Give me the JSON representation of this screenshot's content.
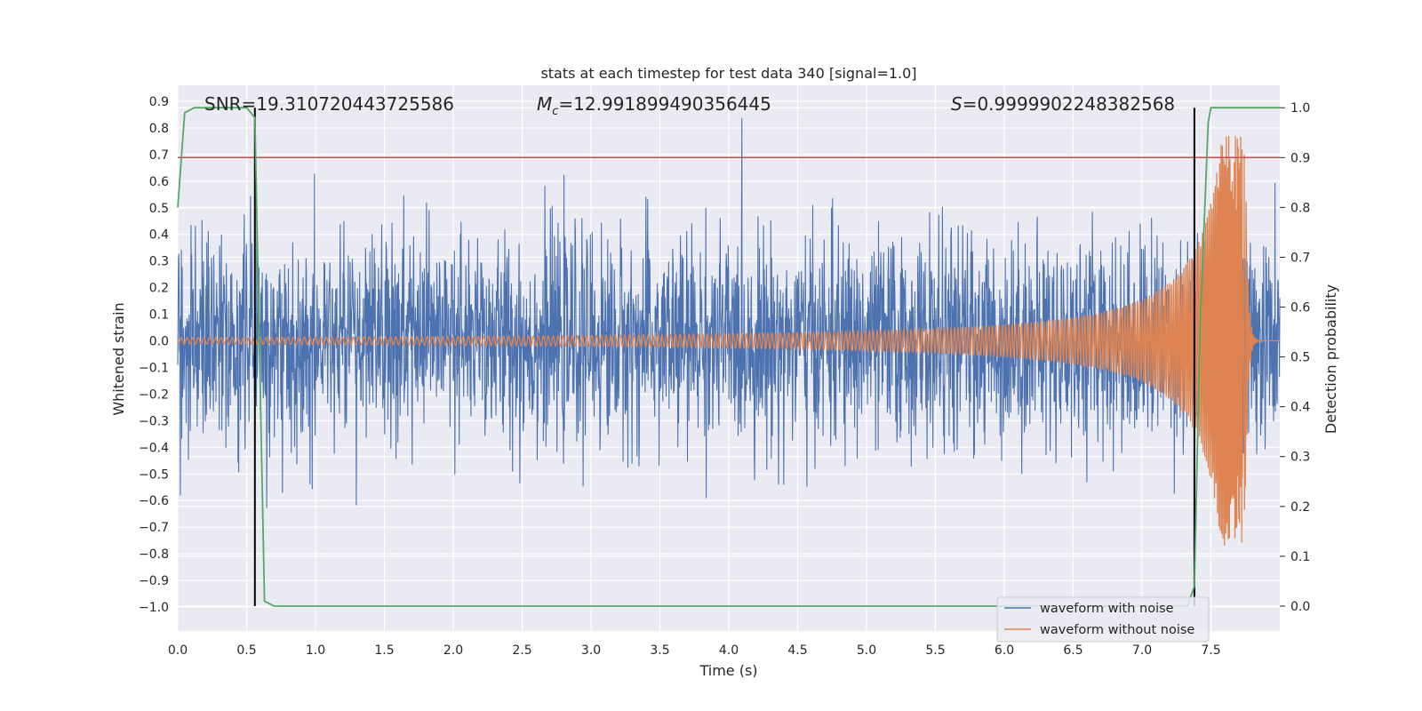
{
  "chart_data": {
    "type": "line",
    "title": "stats at each timestep for test data 340 [signal=1.0]",
    "xlabel": "Time (s)",
    "ylabel_left": "Whitened strain",
    "ylabel_right": "Detection probability",
    "xlim": [
      0.0,
      8.0
    ],
    "ylim_left": [
      -1.09,
      0.96
    ],
    "ylim_right": [
      -0.05,
      1.045
    ],
    "x_ticks": [
      "0.0",
      "0.5",
      "1.0",
      "1.5",
      "2.0",
      "2.5",
      "3.0",
      "3.5",
      "4.0",
      "4.5",
      "5.0",
      "5.5",
      "6.0",
      "6.5",
      "7.0",
      "7.5"
    ],
    "y_ticks_left": [
      "0.9",
      "0.8",
      "0.7",
      "0.6",
      "0.5",
      "0.4",
      "0.3",
      "0.2",
      "0.1",
      "0.0",
      "−0.1",
      "−0.2",
      "−0.3",
      "−0.4",
      "−0.5",
      "−0.6",
      "−0.7",
      "−0.8",
      "−0.9",
      "−1.0"
    ],
    "y_ticks_right": [
      "1.0",
      "0.9",
      "0.8",
      "0.7",
      "0.6",
      "0.5",
      "0.4",
      "0.3",
      "0.2",
      "0.1",
      "0.0"
    ],
    "grid": true,
    "legend_position": "bottom-right",
    "annotations": {
      "snr": "SNR=19.310720443725586",
      "mc_symbol": "M",
      "mc_subscript": "c",
      "mc_value": "=12.991899490356445",
      "s_symbol": "S",
      "s_value": "=0.9999902248382568"
    },
    "series": [
      {
        "name": "waveform with noise",
        "color": "#4c72b0",
        "noise_amplitude": 0.26,
        "max_peak": 0.87,
        "min_peak": -0.93
      },
      {
        "name": "waveform without noise",
        "color": "#dd8452",
        "chirp_start": 0.0,
        "merger_time": 7.75,
        "start_amplitude": 0.012,
        "peak_value": 0.77,
        "trough_value": -0.76
      }
    ],
    "detection_probability": {
      "color": "#55a868",
      "x": [
        0.0,
        0.05,
        0.12,
        0.5,
        0.56,
        0.63,
        0.7,
        7.33,
        7.38,
        7.42,
        7.48,
        7.5,
        8.0
      ],
      "y": [
        0.8,
        0.99,
        1.0,
        1.0,
        0.98,
        0.01,
        0.0,
        0.0,
        0.04,
        0.55,
        0.97,
        1.0,
        1.0
      ]
    },
    "threshold": {
      "color": "#c44e52",
      "value": 0.9
    },
    "markers": {
      "color": "#000000",
      "x": [
        0.56,
        7.38
      ]
    }
  }
}
